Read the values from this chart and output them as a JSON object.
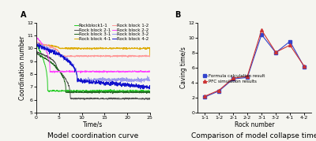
{
  "left_title": "A",
  "right_title": "B",
  "left_xlabel": "Time/s",
  "left_ylabel": "Coordination number",
  "left_xlim": [
    0,
    25
  ],
  "left_ylim": [
    5,
    12
  ],
  "left_yticks": [
    5,
    6,
    7,
    8,
    9,
    10,
    11,
    12
  ],
  "left_xticks": [
    0,
    5,
    10,
    15,
    20,
    25
  ],
  "left_caption": "Model coordination curve",
  "right_xlabel": "Rock number",
  "right_ylabel": "Caving time/s",
  "right_ylim": [
    0,
    12
  ],
  "right_yticks": [
    0,
    2,
    4,
    6,
    8,
    10,
    12
  ],
  "right_caption": "Comparison of model collapse time",
  "right_categories": [
    "1-1",
    "1-2",
    "2-1",
    "2-2",
    "3-1",
    "3-2",
    "4-1",
    "4-2"
  ],
  "formula_values": [
    2.1,
    2.9,
    4.5,
    4.7,
    10.4,
    8.0,
    9.5,
    6.1
  ],
  "pfc_values": [
    2.2,
    3.0,
    4.6,
    4.85,
    11.0,
    8.05,
    9.0,
    6.2
  ],
  "formula_color": "#3344cc",
  "pfc_color": "#cc3333",
  "background_color": "#f5f5f0",
  "fontsize_labels": 5.5,
  "fontsize_tick": 4.5,
  "fontsize_caption": 6.5,
  "fontsize_legend": 4.0,
  "fontsize_panel": 7
}
